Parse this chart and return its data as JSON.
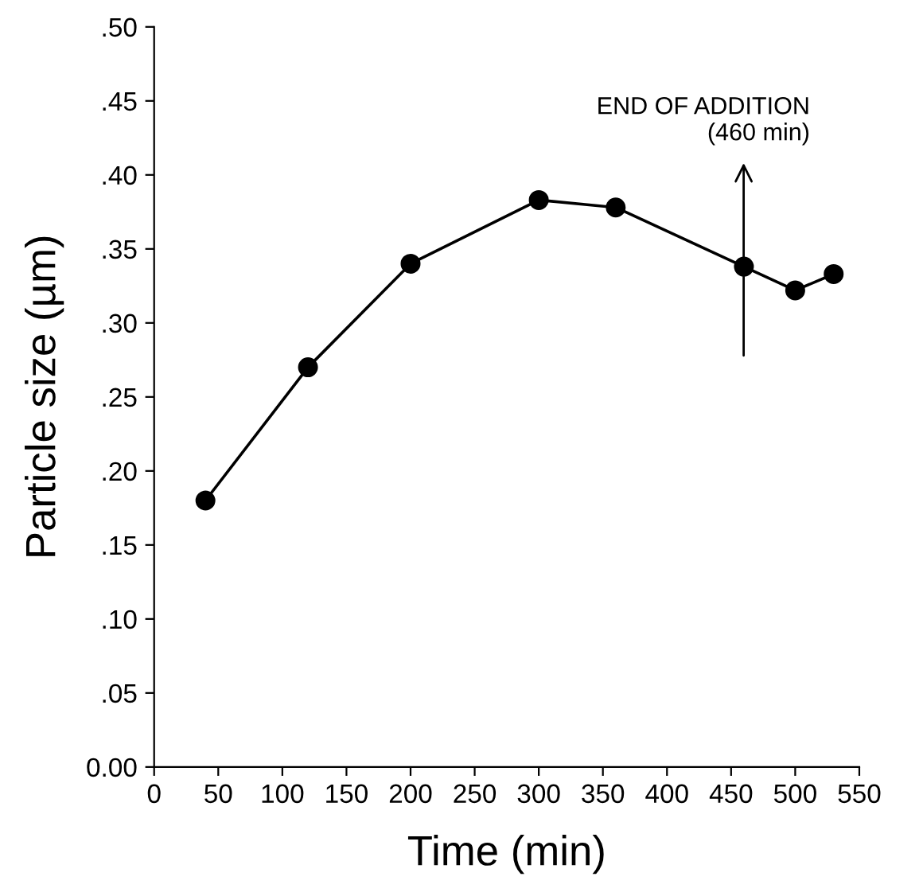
{
  "chart_data": {
    "type": "line",
    "xlabel": "Time (min)",
    "ylabel": "Particle size (µm)",
    "x": [
      40,
      120,
      200,
      300,
      360,
      460,
      500,
      530
    ],
    "series": [
      {
        "color": "#000000",
        "values": [
          0.18,
          0.27,
          0.34,
          0.383,
          0.378,
          0.338,
          0.322,
          0.333
        ]
      }
    ],
    "marker": "circle",
    "line_style": "solid",
    "grid": false,
    "legend": false,
    "xlim": [
      0,
      550
    ],
    "xticks": [
      0,
      50,
      100,
      150,
      200,
      250,
      300,
      350,
      400,
      450,
      500,
      550
    ],
    "ylim": [
      0,
      0.5
    ],
    "yticks": [
      {
        "value": 0,
        "label": "0.00"
      },
      {
        "value": 0.05,
        "label": ".05"
      },
      {
        "value": 0.1,
        "label": ".10"
      },
      {
        "value": 0.15,
        "label": ".15"
      },
      {
        "value": 0.2,
        "label": ".20"
      },
      {
        "value": 0.25,
        "label": ".25"
      },
      {
        "value": 0.3,
        "label": ".30"
      },
      {
        "value": 0.35,
        "label": ".35"
      },
      {
        "value": 0.4,
        "label": ".40"
      },
      {
        "value": 0.45,
        "label": ".45"
      },
      {
        "value": 0.5,
        "label": ".50"
      }
    ],
    "annotations": [
      "END OF ADDITION\n(460 min)"
    ]
  }
}
